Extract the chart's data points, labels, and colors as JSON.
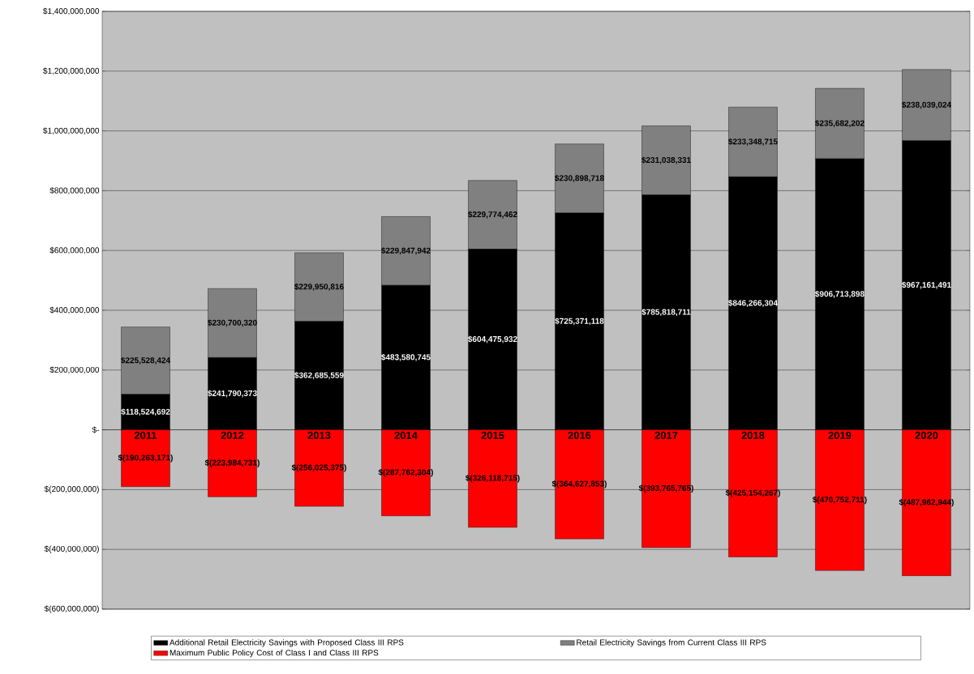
{
  "chart_data": {
    "type": "bar",
    "stacked": true,
    "grid": "y",
    "legend": "bottom",
    "categories": [
      "2011",
      "2012",
      "2013",
      "2014",
      "2015",
      "2016",
      "2017",
      "2018",
      "2019",
      "2020"
    ],
    "ylim": [
      -600000000,
      1400000000
    ],
    "yticks": [
      {
        "value": -600000000,
        "label": "$(600,000,000)"
      },
      {
        "value": -400000000,
        "label": "$(400,000,000)"
      },
      {
        "value": -200000000,
        "label": "$(200,000,000)"
      },
      {
        "value": 0,
        "label": "$-"
      },
      {
        "value": 200000000,
        "label": "$200,000,000"
      },
      {
        "value": 400000000,
        "label": "$400,000,000"
      },
      {
        "value": 600000000,
        "label": "$600,000,000"
      },
      {
        "value": 800000000,
        "label": "$800,000,000"
      },
      {
        "value": 1000000000,
        "label": "$1,000,000,000"
      },
      {
        "value": 1200000000,
        "label": "$1,200,000,000"
      },
      {
        "value": 1400000000,
        "label": "$1,400,000,000"
      }
    ],
    "series": [
      {
        "name": "Additional Retail Electricity Savings with Proposed Class III RPS",
        "color": "#000000",
        "values": [
          118524692,
          241790373,
          362685559,
          483580745,
          604475932,
          725371118,
          785818711,
          846266304,
          906713898,
          967161491
        ],
        "value_labels": [
          "$118,524,692",
          "$241,790,373",
          "$362,685,559",
          "$483,580,745",
          "$604,475,932",
          "$725,371,118",
          "$785,818,711",
          "$846,266,304",
          "$906,713,898",
          "$967,161,491"
        ]
      },
      {
        "name": "Retail Electricity Savings from Current Class III RPS",
        "color": "#808080",
        "values": [
          225528424,
          230700320,
          229950816,
          229847942,
          229774462,
          230898718,
          231038331,
          233348715,
          235682202,
          238039024
        ],
        "value_labels": [
          "$225,528,424",
          "$230,700,320",
          "$229,950,816",
          "$229,847,942",
          "$229,774,462",
          "$230,898,718",
          "$231,038,331",
          "$233,348,715",
          "$235,682,202",
          "$238,039,024"
        ]
      },
      {
        "name": "Maximum Public Policy Cost of Class I and Class III RPS",
        "color": "#ff0000",
        "values": [
          -190263171,
          -223984731,
          -256025375,
          -287762304,
          -326118715,
          -364627853,
          -393765765,
          -425154267,
          -470752711,
          -487962944
        ],
        "value_labels": [
          "$(190,263,171)",
          "$(223,984,731)",
          "$(256,025,375)",
          "$(287,762,304)",
          "$(326,118,715)",
          "$(364,627,853)",
          "$(393,765,765)",
          "$(425,154,267)",
          "$(470,752,711)",
          "$(487,962,944)"
        ]
      }
    ]
  }
}
